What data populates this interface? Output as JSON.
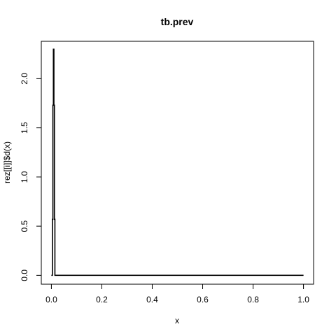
{
  "chart_data": {
    "type": "line",
    "title": "tb.prev",
    "xlabel": "x",
    "ylabel": "rez[[i]]$d(x)",
    "xlim": [
      -0.04,
      1.04
    ],
    "ylim": [
      -0.09,
      2.38
    ],
    "xticks": [
      0.0,
      0.2,
      0.4,
      0.6,
      0.8,
      1.0
    ],
    "xtick_labels": [
      "0.0",
      "0.2",
      "0.4",
      "0.6",
      "0.8",
      "1.0"
    ],
    "yticks": [
      0.0,
      0.5,
      1.0,
      1.5,
      2.0
    ],
    "ytick_labels": [
      "0.0",
      "0.5",
      "1.0",
      "1.5",
      "2.0"
    ],
    "grid": false,
    "legend": "none",
    "line_color": "#000000",
    "series": [
      {
        "x": [
          0,
          0.004,
          0.004,
          0.006,
          0.006,
          0.008,
          0.008,
          0.01,
          0.01,
          0.012,
          0.012,
          0.014,
          0.014,
          1.0
        ],
        "y": [
          0,
          0,
          0.57,
          0.57,
          1.73,
          1.73,
          2.3,
          2.3,
          1.73,
          1.73,
          0.57,
          0.57,
          0,
          0
        ]
      }
    ]
  }
}
